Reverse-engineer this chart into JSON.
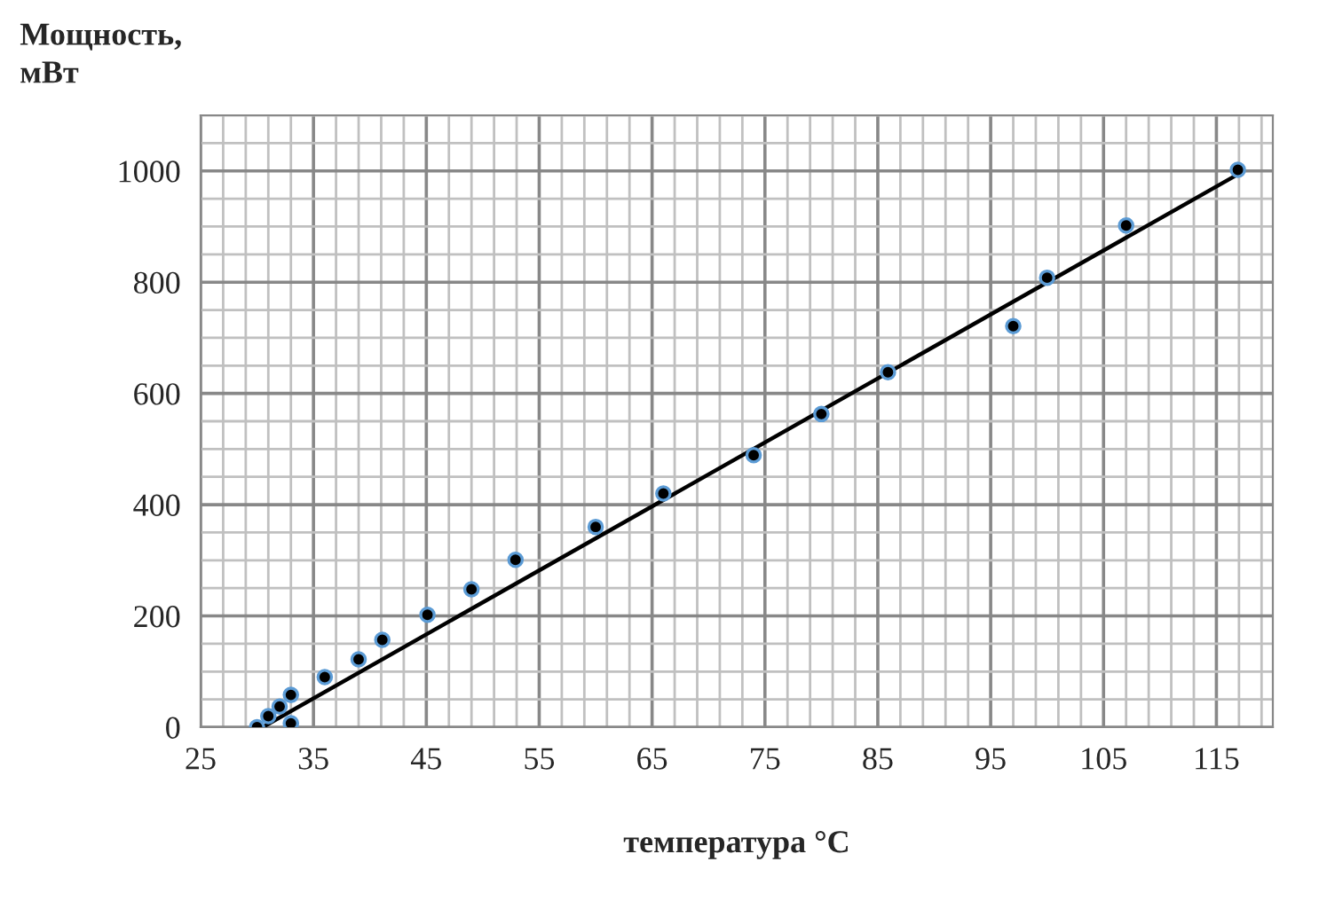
{
  "chart_data": {
    "type": "scatter",
    "ylabel": "Мощность,\nмВт",
    "xlabel": "температура °C",
    "xlim": [
      25,
      120
    ],
    "xticks": [
      25,
      35,
      45,
      55,
      65,
      75,
      85,
      95,
      105,
      115
    ],
    "ylim": [
      0,
      1100
    ],
    "yticks": [
      0,
      200,
      400,
      600,
      800,
      1000
    ],
    "grid": true,
    "marker": "circle",
    "series": [
      {
        "color": "#000000",
        "x": [
          30,
          31,
          32,
          33,
          33,
          36,
          39,
          41.1,
          45.1,
          49,
          52.9,
          60,
          66,
          74,
          80,
          85.9,
          97,
          100,
          107,
          116.9
        ],
        "values": [
          0,
          20,
          37,
          58,
          7,
          90,
          122,
          157,
          202,
          248,
          301,
          360,
          420,
          489,
          563,
          638,
          721,
          808,
          902,
          1002
        ]
      },
      {
        "type": "line",
        "color": "#000000",
        "x": [
          30.5,
          117
        ],
        "values": [
          0,
          995
        ],
        "marker": "none",
        "line_style": "solid"
      }
    ]
  }
}
